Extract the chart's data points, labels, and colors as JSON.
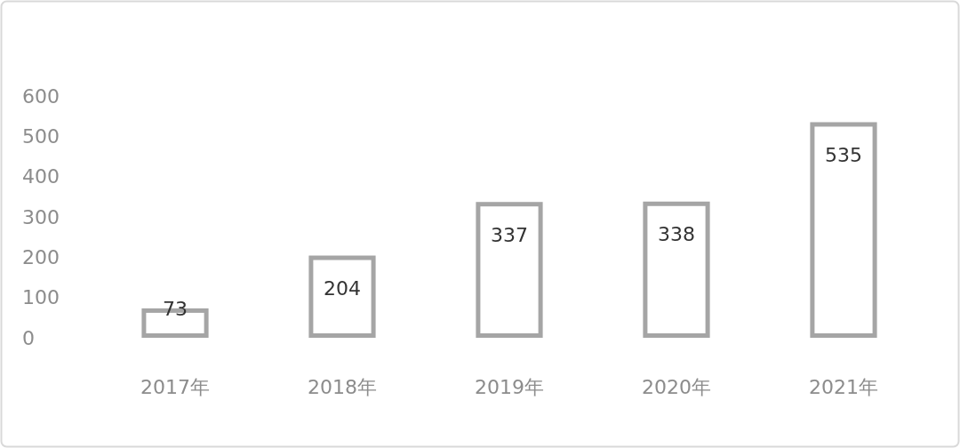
{
  "chart_data": {
    "type": "bar",
    "categories": [
      "2017年",
      "2018年",
      "2019年",
      "2020年",
      "2021年"
    ],
    "values": [
      73,
      204,
      337,
      338,
      535
    ],
    "color": "#a5a5a5",
    "ylim": [
      0,
      600
    ],
    "yticks": [
      0,
      100,
      200,
      300,
      400,
      500,
      600
    ],
    "data_labels": true
  }
}
